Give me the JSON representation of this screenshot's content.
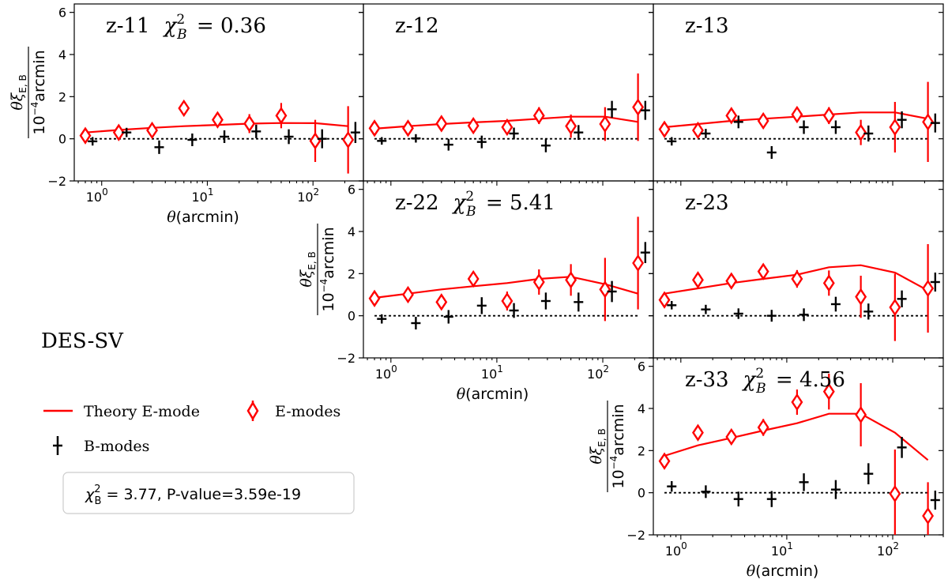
{
  "chart_data": {
    "type": "scatter",
    "survey": "DES-SV",
    "xlabel": "θ(arcmin)",
    "ylabel": "θξ_{E,B} / 10^{-4}arcmin",
    "x_scale": "log",
    "xlim": [
      0.55,
      300
    ],
    "ylim": [
      -2,
      6.4
    ],
    "x_ticks": [
      {
        "value": 1,
        "base": "10",
        "exp": "0"
      },
      {
        "value": 10,
        "base": "10",
        "exp": "1"
      },
      {
        "value": 100,
        "base": "10",
        "exp": "2"
      }
    ],
    "y_ticks": [
      -2,
      0,
      2,
      4,
      6
    ],
    "legend": {
      "theory": "Theory E-mode",
      "emodes": "E-modes",
      "bmodes": "B-modes",
      "stat": {
        "chi_symbol": "χ",
        "sub": "B",
        "sup": "2",
        "text": " = 3.77, P-value=3.59e-19"
      }
    },
    "colors": {
      "emode": "#ff0000",
      "bmode": "#000000",
      "zero_line": "#000000"
    },
    "theta": [
      0.7,
      1.45,
      3.0,
      6.0,
      12.5,
      25,
      50,
      105,
      215
    ],
    "theta_b": [
      0.82,
      1.72,
      3.5,
      7.2,
      14.5,
      29,
      59,
      122,
      252
    ],
    "panels": [
      {
        "id": "z-11",
        "label": "z-11",
        "chi2": "0.36",
        "theory": [
          0.3,
          0.42,
          0.52,
          0.6,
          0.66,
          0.72,
          0.75,
          0.74,
          0.6
        ],
        "e": [
          0.15,
          0.3,
          0.4,
          1.45,
          0.9,
          0.72,
          1.1,
          -0.1,
          -0.05
        ],
        "e_err": [
          0.25,
          0.25,
          0.3,
          0.3,
          0.35,
          0.45,
          0.6,
          1.0,
          1.6
        ],
        "b": [
          -0.12,
          0.3,
          -0.4,
          -0.05,
          0.1,
          0.35,
          0.1,
          0.0,
          0.3
        ],
        "b_err": [
          0.2,
          0.22,
          0.32,
          0.3,
          0.3,
          0.32,
          0.35,
          0.45,
          0.5
        ]
      },
      {
        "id": "z-12",
        "label": "z-12",
        "chi2": null,
        "theory": [
          0.48,
          0.6,
          0.7,
          0.78,
          0.85,
          0.95,
          1.05,
          1.05,
          0.8
        ],
        "e": [
          0.5,
          0.5,
          0.72,
          0.62,
          0.55,
          1.1,
          0.6,
          0.7,
          1.5
        ],
        "e_err": [
          0.25,
          0.25,
          0.28,
          0.3,
          0.35,
          0.4,
          0.55,
          0.8,
          1.6
        ],
        "b": [
          -0.1,
          0.02,
          -0.28,
          -0.15,
          0.25,
          -0.32,
          0.3,
          1.4,
          1.35
        ],
        "b_err": [
          0.18,
          0.2,
          0.28,
          0.3,
          0.28,
          0.32,
          0.35,
          0.4,
          0.45
        ]
      },
      {
        "id": "z-13",
        "label": "z-13",
        "chi2": null,
        "theory": [
          0.55,
          0.7,
          0.85,
          0.95,
          1.05,
          1.15,
          1.25,
          1.25,
          0.95
        ],
        "e": [
          0.45,
          0.4,
          1.1,
          0.85,
          1.15,
          1.1,
          0.3,
          0.55,
          0.8
        ],
        "e_err": [
          0.25,
          0.25,
          0.3,
          0.3,
          0.35,
          0.4,
          0.6,
          1.2,
          1.9
        ],
        "b": [
          -0.12,
          0.25,
          0.8,
          -0.65,
          0.55,
          0.55,
          0.25,
          0.9,
          0.75
        ],
        "b_err": [
          0.2,
          0.22,
          0.3,
          0.3,
          0.32,
          0.32,
          0.38,
          0.4,
          0.45
        ]
      },
      {
        "id": "z-22",
        "label": "z-22",
        "chi2": "5.41",
        "theory": [
          0.85,
          1.05,
          1.25,
          1.4,
          1.55,
          1.75,
          1.85,
          1.5,
          1.05
        ],
        "e": [
          0.82,
          1.0,
          0.65,
          1.75,
          0.7,
          1.6,
          1.7,
          1.25,
          2.5
        ],
        "e_err": [
          0.25,
          0.28,
          0.3,
          0.35,
          0.45,
          0.6,
          0.75,
          1.5,
          2.2
        ],
        "b": [
          -0.15,
          -0.35,
          -0.05,
          0.48,
          0.25,
          0.7,
          0.65,
          1.15,
          3.0
        ],
        "b_err": [
          0.22,
          0.3,
          0.32,
          0.4,
          0.35,
          0.4,
          0.45,
          0.5,
          0.5
        ]
      },
      {
        "id": "z-23",
        "label": "z-23",
        "chi2": null,
        "theory": [
          1.05,
          1.3,
          1.55,
          1.75,
          1.95,
          2.3,
          2.4,
          2.05,
          1.2
        ],
        "e": [
          0.75,
          1.7,
          1.65,
          2.1,
          1.75,
          1.55,
          0.9,
          0.4,
          1.3
        ],
        "e_err": [
          0.25,
          0.3,
          0.3,
          0.32,
          0.42,
          0.6,
          1.0,
          1.6,
          2.1
        ],
        "b": [
          0.5,
          0.3,
          0.1,
          0.0,
          0.05,
          0.55,
          0.2,
          0.8,
          1.6
        ],
        "b_err": [
          0.2,
          0.22,
          0.25,
          0.28,
          0.3,
          0.35,
          0.38,
          0.4,
          0.45
        ]
      },
      {
        "id": "z-33",
        "label": "z-33",
        "chi2": "4.56",
        "theory": [
          1.75,
          2.25,
          2.6,
          2.95,
          3.3,
          3.75,
          3.75,
          2.85,
          1.55
        ],
        "e": [
          1.5,
          2.85,
          2.65,
          3.1,
          4.3,
          4.8,
          3.7,
          -0.05,
          -1.1
        ],
        "e_err": [
          0.25,
          0.3,
          0.35,
          0.4,
          0.6,
          0.85,
          1.5,
          2.1,
          1.6
        ],
        "b": [
          0.3,
          0.05,
          -0.3,
          -0.3,
          0.5,
          0.15,
          0.9,
          2.15,
          -0.35
        ],
        "b_err": [
          0.25,
          0.3,
          0.35,
          0.38,
          0.42,
          0.45,
          0.5,
          0.5,
          0.45
        ]
      }
    ]
  }
}
